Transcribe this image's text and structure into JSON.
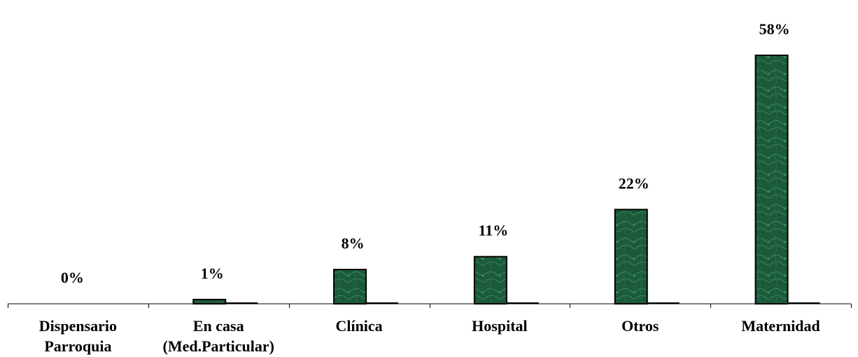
{
  "chart_data": {
    "type": "bar",
    "categories": [
      [
        "Dispensario",
        "Parroquia"
      ],
      [
        "En casa",
        "(Med.Particular)"
      ],
      [
        "Clínica"
      ],
      [
        "Hospital"
      ],
      [
        "Otros"
      ],
      [
        "Maternidad"
      ]
    ],
    "values": [
      0,
      1,
      8,
      11,
      22,
      58
    ],
    "data_labels": [
      "0%",
      "1%",
      "8%",
      "11%",
      "22%",
      "58%"
    ],
    "ylim": [
      0,
      58
    ],
    "grid": false,
    "legend": "none",
    "colors": {
      "bar_fill": "#1e5a3a",
      "bar_texture": "#3f8a62",
      "bar_stroke": "#000000",
      "axis": "#000000",
      "text": "#000000"
    }
  }
}
